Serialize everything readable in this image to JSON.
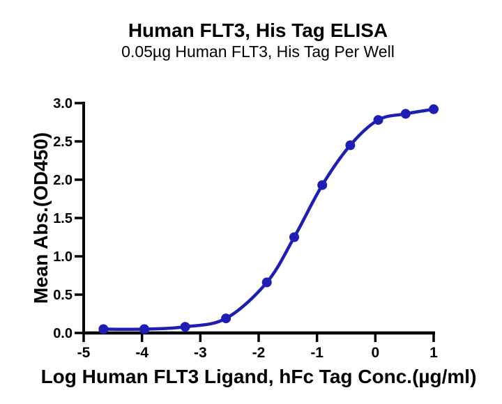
{
  "chart_data": {
    "type": "line",
    "title": "Human FLT3, His Tag ELISA",
    "subtitle": "0.05µg Human FLT3, His Tag Per Well",
    "xlabel": "Log Human FLT3 Ligand, hFc Tag Conc.(µg/ml)",
    "ylabel": "Mean Abs.(OD450)",
    "x": [
      -4.66,
      -3.96,
      -3.26,
      -2.56,
      -1.86,
      -1.39,
      -0.91,
      -0.43,
      0.05,
      0.52,
      1.0
    ],
    "y": [
      0.05,
      0.05,
      0.08,
      0.19,
      0.66,
      1.25,
      1.93,
      2.45,
      2.78,
      2.86,
      2.92
    ],
    "xlim": [
      -5,
      1
    ],
    "ylim": [
      0,
      3
    ],
    "xticks": [
      -5,
      -4,
      -3,
      -2,
      -1,
      0,
      1
    ],
    "xtick_labels": [
      "-5",
      "-4",
      "-3",
      "-2",
      "-1",
      "0",
      "1"
    ],
    "yticks": [
      0,
      0.5,
      1,
      1.5,
      2,
      2.5,
      3
    ],
    "ytick_labels": [
      "0.0",
      "0.5",
      "1.0",
      "1.5",
      "2.0",
      "2.5",
      "3.0"
    ],
    "curve_color": "#1e1eb4",
    "axis_color": "#000000",
    "marker": "circle",
    "grid": false,
    "legend": null
  }
}
